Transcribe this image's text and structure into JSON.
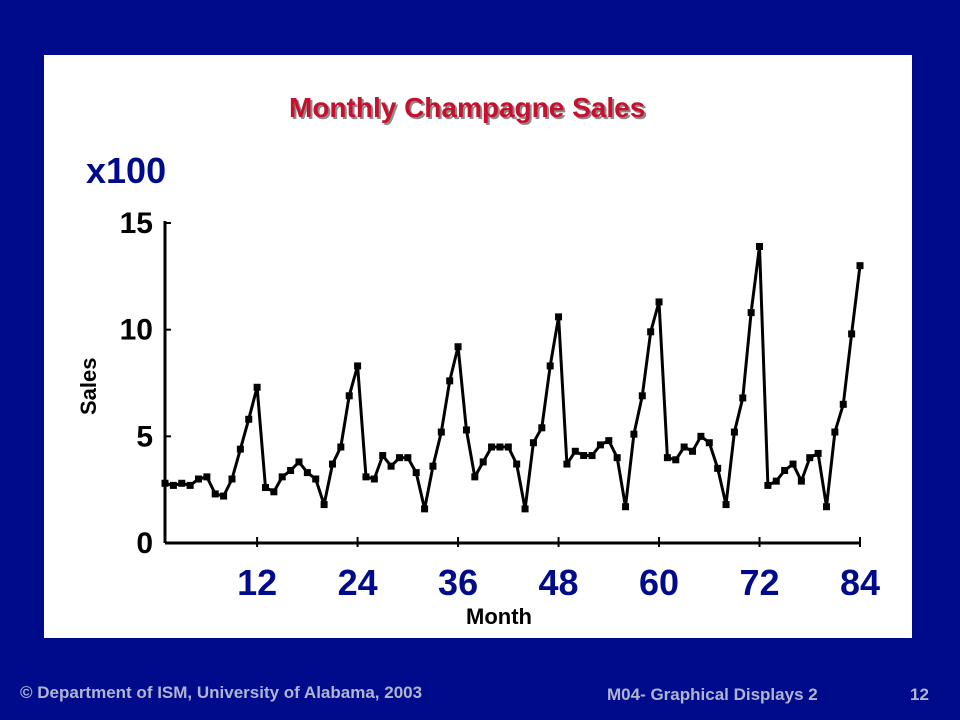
{
  "footer": {
    "copyright": "© Department of ISM, University of Alabama, 2003",
    "module": "M04- Graphical Displays 2",
    "page": "12"
  },
  "chart_data": {
    "type": "line",
    "title": "Monthly Champagne Sales",
    "scale_label": "x100",
    "xlabel": "Month",
    "ylabel": "Sales",
    "ylim": [
      0,
      15
    ],
    "yticks": [
      "0",
      "5",
      "10",
      "15"
    ],
    "xlim": [
      1,
      84
    ],
    "xticks": [
      "12",
      "24",
      "36",
      "48",
      "60",
      "72",
      "84"
    ],
    "grid": false,
    "colors": {
      "line": "#000000",
      "title": "#c8102e",
      "ticks": "#000b8c",
      "background": "#000b8c"
    },
    "series": [
      {
        "values": [
          2.8,
          2.7,
          2.8,
          2.7,
          3.0,
          3.1,
          2.3,
          2.2,
          3.0,
          4.4,
          5.8,
          7.3,
          2.6,
          2.4,
          3.1,
          3.4,
          3.8,
          3.3,
          3.0,
          1.8,
          3.7,
          4.5,
          6.9,
          8.3,
          3.1,
          3.0,
          4.1,
          3.6,
          4.0,
          4.0,
          3.3,
          1.6,
          3.6,
          5.2,
          7.6,
          9.2,
          5.3,
          3.1,
          3.8,
          4.5,
          4.5,
          4.5,
          3.7,
          1.6,
          4.7,
          5.4,
          8.3,
          10.6,
          3.7,
          4.3,
          4.1,
          4.1,
          4.6,
          4.8,
          4.0,
          1.7,
          5.1,
          6.9,
          9.9,
          11.3,
          4.0,
          3.9,
          4.5,
          4.3,
          5.0,
          4.7,
          3.5,
          1.8,
          5.2,
          6.8,
          10.8,
          13.9,
          2.7,
          2.9,
          3.4,
          3.7,
          2.9,
          4.0,
          4.2,
          1.7,
          5.2,
          6.5,
          9.8,
          13.0
        ]
      }
    ]
  }
}
